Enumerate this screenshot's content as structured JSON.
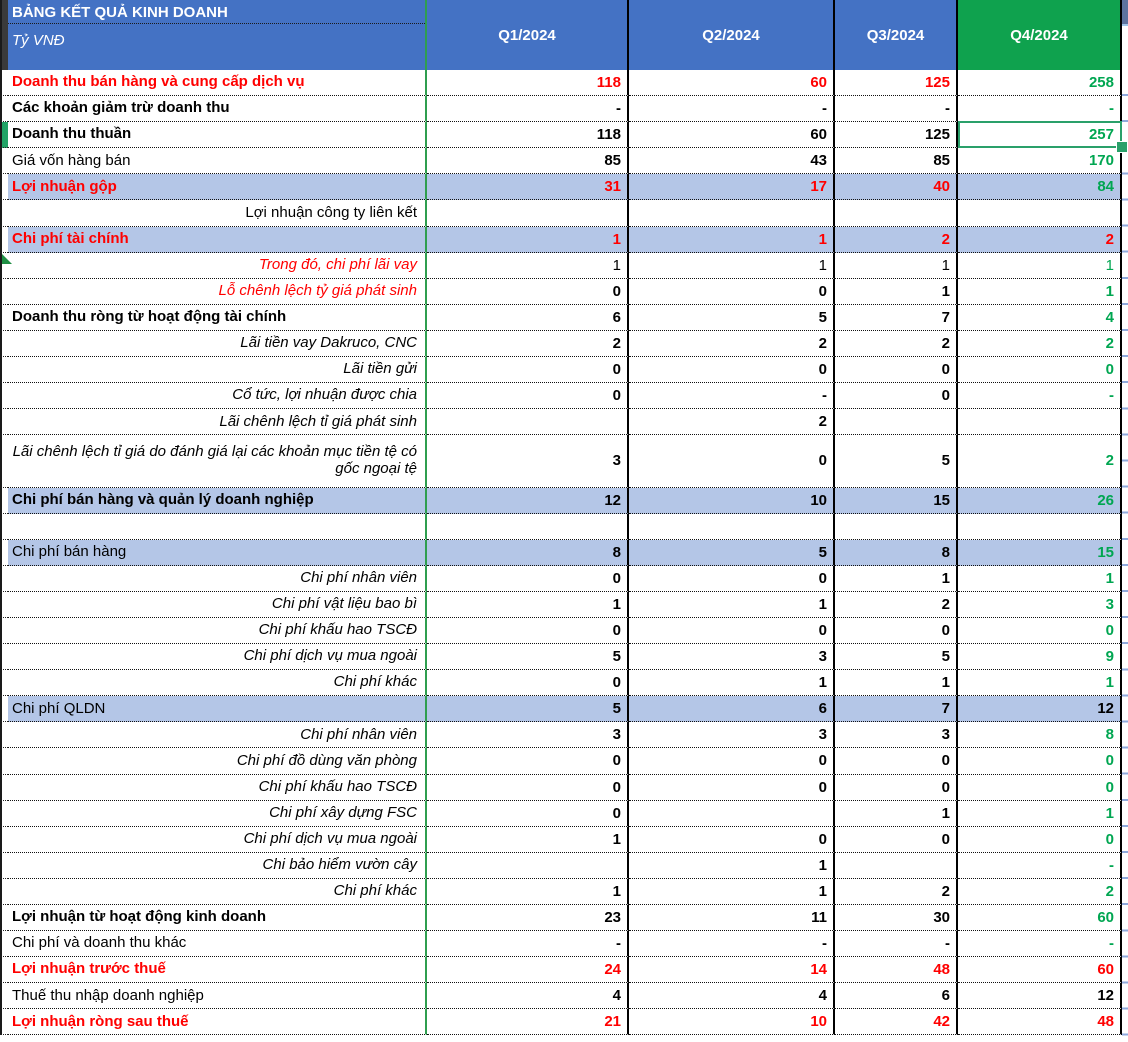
{
  "table": {
    "title": "BẢNG KẾT QUẢ KINH DOANH",
    "unit": "Tỷ VNĐ",
    "columns": [
      "Q1/2024",
      "Q2/2024",
      "Q3/2024",
      "Q4/2024"
    ],
    "selected_cell": {
      "row_label": "Doanh thu thuần",
      "column": "Q4/2024",
      "value": "257"
    },
    "rows": [
      {
        "label": "Doanh thu bán hàng và cung cấp dịch vụ",
        "ls": "red-bold",
        "vc": "red",
        "q4c": "green",
        "values": [
          "118",
          "60",
          "125",
          "258"
        ]
      },
      {
        "label": "Các khoản giảm trừ doanh thu",
        "ls": "bold",
        "vc": "black",
        "q4c": "green",
        "values": [
          "-",
          "-",
          "-",
          "-"
        ]
      },
      {
        "label": "Doanh thu thuần",
        "ls": "bold",
        "vc": "black",
        "q4c": "green",
        "selected": true,
        "values": [
          "118",
          "60",
          "125",
          "257"
        ]
      },
      {
        "label": "Giá vốn hàng bán",
        "ls": "plain",
        "vc": "black",
        "q4c": "green",
        "values": [
          "85",
          "43",
          "85",
          "170"
        ]
      },
      {
        "label": "Lợi nhuận gộp",
        "ls": "red-bold",
        "vc": "red",
        "q4c": "green",
        "band": true,
        "values": [
          "31",
          "17",
          "40",
          "84"
        ]
      },
      {
        "label": "Lợi nhuận công ty liên kết",
        "ls": "right",
        "vc": "black",
        "q4c": "black",
        "values": [
          "",
          "",
          "",
          ""
        ]
      },
      {
        "label": "Chi phí tài chính",
        "ls": "red-bold",
        "vc": "red",
        "q4c": "red",
        "band": true,
        "values": [
          "1",
          "1",
          "2",
          "2"
        ]
      },
      {
        "label": "Trong đó, chi phí lãi vay",
        "ls": "red-italic-right",
        "vc": "black",
        "q4c": "green",
        "vw": "reg",
        "marker": true,
        "values": [
          "1",
          "1",
          "1",
          "1"
        ]
      },
      {
        "label": "Lỗ chênh lệch tỷ giá phát sinh",
        "ls": "red-italic-right",
        "vc": "black",
        "q4c": "green",
        "values": [
          "0",
          "0",
          "1",
          "1"
        ]
      },
      {
        "label": "Doanh thu ròng từ hoạt động tài chính",
        "ls": "bold",
        "vc": "black",
        "q4c": "green",
        "values": [
          "6",
          "5",
          "7",
          "4"
        ]
      },
      {
        "label": "Lãi tiền vay Dakruco, CNC",
        "ls": "italic-right",
        "vc": "black",
        "q4c": "green",
        "values": [
          "2",
          "2",
          "2",
          "2"
        ]
      },
      {
        "label": "Lãi tiền gửi",
        "ls": "italic-right",
        "vc": "black",
        "q4c": "green",
        "values": [
          "0",
          "0",
          "0",
          "0"
        ]
      },
      {
        "label": "Cổ tức, lợi nhuận được chia",
        "ls": "italic-right",
        "vc": "black",
        "q4c": "green",
        "values": [
          "0",
          "-",
          "0",
          "-"
        ]
      },
      {
        "label": "Lãi chênh lệch tỉ giá phát sinh",
        "ls": "italic-right",
        "vc": "black",
        "q4c": "green",
        "values": [
          "",
          "2",
          "",
          ""
        ]
      },
      {
        "label": "Lãi chênh lệch tỉ giá do đánh giá lại các khoản mục tiền tệ có gốc ngoại tệ",
        "ls": "italic-right",
        "vc": "black",
        "q4c": "green",
        "tall": true,
        "values": [
          "3",
          "0",
          "5",
          "2"
        ]
      },
      {
        "label": "Chi phí bán hàng và quản lý doanh nghiệp",
        "ls": "bold",
        "vc": "black",
        "q4c": "green",
        "band": true,
        "values": [
          "12",
          "10",
          "15",
          "26"
        ]
      },
      {
        "label": "",
        "ls": "plain",
        "vc": "black",
        "q4c": "black",
        "values": [
          "",
          "",
          "",
          ""
        ]
      },
      {
        "label": "Chi phí bán hàng",
        "ls": "plain",
        "vc": "black",
        "q4c": "green",
        "band": true,
        "values": [
          "8",
          "5",
          "8",
          "15"
        ]
      },
      {
        "label": "Chi phí nhân viên",
        "ls": "italic-right",
        "vc": "black",
        "q4c": "green",
        "values": [
          "0",
          "0",
          "1",
          "1"
        ]
      },
      {
        "label": "Chi phí vật liệu bao bì",
        "ls": "italic-right",
        "vc": "black",
        "q4c": "green",
        "values": [
          "1",
          "1",
          "2",
          "3"
        ]
      },
      {
        "label": "Chi phí khấu hao TSCĐ",
        "ls": "italic-right",
        "vc": "black",
        "q4c": "green",
        "values": [
          "0",
          "0",
          "0",
          "0"
        ]
      },
      {
        "label": "Chi phí dịch vụ mua ngoài",
        "ls": "italic-right",
        "vc": "black",
        "q4c": "green",
        "values": [
          "5",
          "3",
          "5",
          "9"
        ]
      },
      {
        "label": "Chi phí khác",
        "ls": "italic-right",
        "vc": "black",
        "q4c": "green",
        "values": [
          "0",
          "1",
          "1",
          "1"
        ]
      },
      {
        "label": "Chi phí QLDN",
        "ls": "plain",
        "vc": "black",
        "q4c": "black",
        "band": true,
        "values": [
          "5",
          "6",
          "7",
          "12"
        ]
      },
      {
        "label": "Chi phí nhân viên",
        "ls": "italic-right",
        "vc": "black",
        "q4c": "green",
        "values": [
          "3",
          "3",
          "3",
          "8"
        ]
      },
      {
        "label": "Chi phí đồ dùng văn phòng",
        "ls": "italic-right",
        "vc": "black",
        "q4c": "green",
        "values": [
          "0",
          "0",
          "0",
          "0"
        ]
      },
      {
        "label": "Chi phí khấu hao TSCĐ",
        "ls": "italic-right",
        "vc": "black",
        "q4c": "green",
        "values": [
          "0",
          "0",
          "0",
          "0"
        ]
      },
      {
        "label": "Chi phí xây dựng FSC",
        "ls": "italic-right",
        "vc": "black",
        "q4c": "green",
        "values": [
          "0",
          "",
          "1",
          "1"
        ]
      },
      {
        "label": "Chi phí dịch vụ mua ngoài",
        "ls": "italic-right",
        "vc": "black",
        "q4c": "green",
        "values": [
          "1",
          "0",
          "0",
          "0"
        ]
      },
      {
        "label": "Chi bảo hiểm vườn cây",
        "ls": "italic-right",
        "vc": "black",
        "q4c": "green",
        "values": [
          "",
          "1",
          "",
          "-"
        ]
      },
      {
        "label": "Chi phí khác",
        "ls": "italic-right",
        "vc": "black",
        "q4c": "green",
        "values": [
          "1",
          "1",
          "2",
          "2"
        ]
      },
      {
        "label": "Lợi nhuận từ hoạt động kinh doanh",
        "ls": "bold",
        "vc": "black",
        "q4c": "green",
        "values": [
          "23",
          "11",
          "30",
          "60"
        ]
      },
      {
        "label": "Chi phí và doanh thu khác",
        "ls": "plain",
        "vc": "black",
        "q4c": "green",
        "values": [
          "-",
          "-",
          "-",
          "-"
        ]
      },
      {
        "label": "Lợi nhuận trước thuế",
        "ls": "red-bold",
        "vc": "red",
        "q4c": "red",
        "values": [
          "24",
          "14",
          "48",
          "60"
        ]
      },
      {
        "label": "Thuế thu nhập doanh nghiệp",
        "ls": "plain",
        "vc": "black",
        "q4c": "black",
        "values": [
          "4",
          "4",
          "6",
          "12"
        ]
      },
      {
        "label": "Lợi nhuận ròng sau thuế",
        "ls": "red-bold",
        "vc": "red",
        "q4c": "red",
        "values": [
          "21",
          "10",
          "42",
          "48"
        ]
      }
    ]
  },
  "colors": {
    "header_blue": "#4472c4",
    "header_green": "#0fa24e",
    "band_blue": "#b4c6e7",
    "green_text": "#00a651",
    "red_text": "#ff0000",
    "selection_green": "#2aa06a",
    "separator_green": "#2f9e4f"
  }
}
